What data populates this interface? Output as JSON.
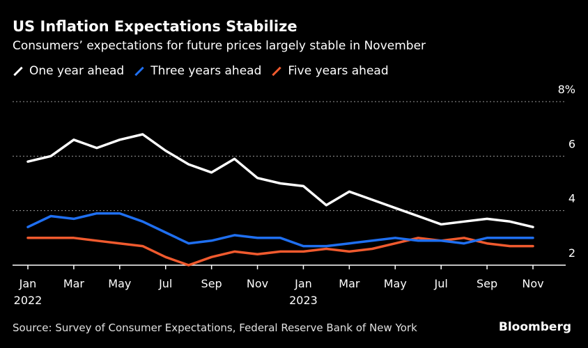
{
  "title": "US Inflation Expectations Stabilize",
  "subtitle": "Consumers’ expectations for future prices largely stable in November",
  "source": "Source: Survey of Consumer Expectations, Federal Reserve Bank of New York",
  "brand": "Bloomberg",
  "colors": {
    "background": "#000000",
    "one_year": "#ffffff",
    "three_years": "#1f6ff0",
    "five_years": "#f05a2e",
    "grid": "#9a9a9a"
  },
  "chart_data": {
    "type": "line",
    "title": "US Inflation Expectations Stabilize",
    "subtitle": "Consumers’ expectations for future prices largely stable in November",
    "x": [
      "Jan 2022",
      "Feb 2022",
      "Mar 2022",
      "Apr 2022",
      "May 2022",
      "Jun 2022",
      "Jul 2022",
      "Aug 2022",
      "Sep 2022",
      "Oct 2022",
      "Nov 2022",
      "Dec 2022",
      "Jan 2023",
      "Feb 2023",
      "Mar 2023",
      "Apr 2023",
      "May 2023",
      "Jun 2023",
      "Jul 2023",
      "Aug 2023",
      "Sep 2023",
      "Oct 2023",
      "Nov 2023"
    ],
    "x_tick_labels": [
      {
        "label": "Jan",
        "year": "2022",
        "index": 0
      },
      {
        "label": "Mar",
        "year": "",
        "index": 2
      },
      {
        "label": "May",
        "year": "",
        "index": 4
      },
      {
        "label": "Jul",
        "year": "",
        "index": 6
      },
      {
        "label": "Sep",
        "year": "",
        "index": 8
      },
      {
        "label": "Nov",
        "year": "",
        "index": 10
      },
      {
        "label": "Jan",
        "year": "2023",
        "index": 12
      },
      {
        "label": "Mar",
        "year": "",
        "index": 14
      },
      {
        "label": "May",
        "year": "",
        "index": 16
      },
      {
        "label": "Jul",
        "year": "",
        "index": 18
      },
      {
        "label": "Sep",
        "year": "",
        "index": 20
      },
      {
        "label": "Nov",
        "year": "",
        "index": 22
      }
    ],
    "y_ticks": [
      {
        "value": 2,
        "label": "2"
      },
      {
        "value": 4,
        "label": "4"
      },
      {
        "value": 6,
        "label": "6"
      },
      {
        "value": 8,
        "label": "8%"
      }
    ],
    "ylim": [
      2,
      8
    ],
    "grid": true,
    "legend_position": "top-left",
    "series": [
      {
        "name": "One year ahead",
        "color": "#ffffff",
        "values": [
          5.8,
          6.0,
          6.6,
          6.3,
          6.6,
          6.8,
          6.2,
          5.7,
          5.4,
          5.9,
          5.2,
          5.0,
          4.9,
          4.2,
          4.7,
          4.4,
          4.1,
          3.8,
          3.5,
          3.6,
          3.7,
          3.6,
          3.4
        ]
      },
      {
        "name": "Three years ahead",
        "color": "#1f6ff0",
        "values": [
          3.4,
          3.8,
          3.7,
          3.9,
          3.9,
          3.6,
          3.2,
          2.8,
          2.9,
          3.1,
          3.0,
          3.0,
          2.7,
          2.7,
          2.8,
          2.9,
          3.0,
          2.9,
          2.9,
          2.8,
          3.0,
          3.0,
          3.0
        ]
      },
      {
        "name": "Five years ahead",
        "color": "#f05a2e",
        "values": [
          3.0,
          3.0,
          3.0,
          2.9,
          2.8,
          2.7,
          2.3,
          2.0,
          2.3,
          2.5,
          2.4,
          2.5,
          2.5,
          2.6,
          2.5,
          2.6,
          2.8,
          3.0,
          2.9,
          3.0,
          2.8,
          2.7,
          2.7
        ]
      }
    ]
  }
}
